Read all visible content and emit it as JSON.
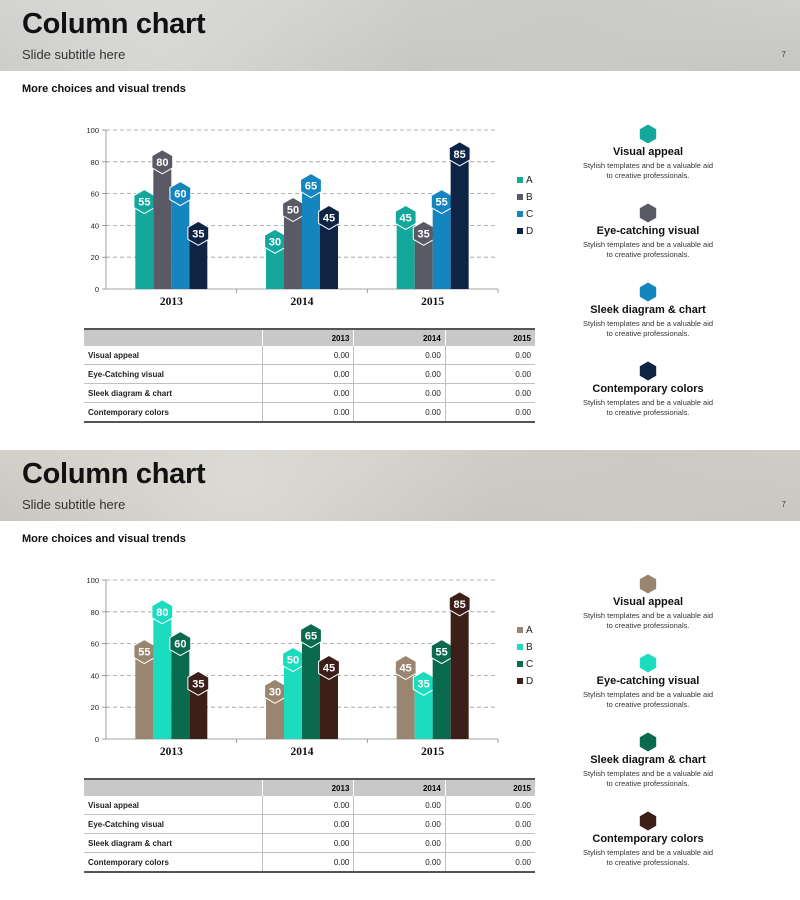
{
  "slides": [
    {
      "title": "Column chart",
      "subtitle": "Slide subtitle here",
      "page": "7",
      "section": "More choices and visual trends",
      "colors": [
        "#14a89c",
        "#5a5a66",
        "#1585c0",
        "#0f2444"
      ],
      "table": {
        "columns": [
          "",
          "2013",
          "2014",
          "2015"
        ],
        "rows": [
          [
            "Visual appeal",
            "0.00",
            "0.00",
            "0.00"
          ],
          [
            "Eye-Catching visual",
            "0.00",
            "0.00",
            "0.00"
          ],
          [
            "Sleek diagram & chart",
            "0.00",
            "0.00",
            "0.00"
          ],
          [
            "Contemporary colors",
            "0.00",
            "0.00",
            "0.00"
          ]
        ]
      },
      "features": [
        {
          "title": "Visual appeal",
          "desc1": "Stylish templates and be a valuable aid",
          "desc2": "to creative professionals.",
          "icon": "hexagon-icon"
        },
        {
          "title": "Eye-catching visual",
          "desc1": "Stylish templates and be a valuable aid",
          "desc2": "to creative professionals.",
          "icon": "hexagon-icon"
        },
        {
          "title": "Sleek diagram & chart",
          "desc1": "Stylish templates and be a valuable aid",
          "desc2": "to creative professionals.",
          "icon": "hexagon-icon"
        },
        {
          "title": "Contemporary colors",
          "desc1": "Stylish templates and be a valuable aid",
          "desc2": "to creative professionals.",
          "icon": "hexagon-icon"
        }
      ]
    },
    {
      "title": "Column chart",
      "subtitle": "Slide subtitle here",
      "page": "7",
      "section": "More choices and visual trends",
      "colors": [
        "#9a8670",
        "#1cdcc0",
        "#0a6a4e",
        "#3d1f19"
      ],
      "table": {
        "columns": [
          "",
          "2013",
          "2014",
          "2015"
        ],
        "rows": [
          [
            "Visual appeal",
            "0.00",
            "0.00",
            "0.00"
          ],
          [
            "Eye-Catching visual",
            "0.00",
            "0.00",
            "0.00"
          ],
          [
            "Sleek diagram & chart",
            "0.00",
            "0.00",
            "0.00"
          ],
          [
            "Contemporary colors",
            "0.00",
            "0.00",
            "0.00"
          ]
        ]
      },
      "features": [
        {
          "title": "Visual appeal",
          "desc1": "Stylish templates and be a valuable aid",
          "desc2": "to creative professionals.",
          "icon": "hexagon-icon"
        },
        {
          "title": "Eye-catching visual",
          "desc1": "Stylish templates and be a valuable aid",
          "desc2": "to creative professionals.",
          "icon": "hexagon-icon"
        },
        {
          "title": "Sleek diagram & chart",
          "desc1": "Stylish templates and be a valuable aid",
          "desc2": "to creative professionals.",
          "icon": "hexagon-icon"
        },
        {
          "title": "Contemporary colors",
          "desc1": "Stylish templates and be a valuable aid",
          "desc2": "to creative professionals.",
          "icon": "hexagon-icon"
        }
      ]
    }
  ],
  "chart_data": [
    {
      "type": "bar",
      "categories": [
        "2013",
        "2014",
        "2015"
      ],
      "series": [
        {
          "name": "A",
          "values": [
            55,
            30,
            45
          ]
        },
        {
          "name": "B",
          "values": [
            80,
            50,
            35
          ]
        },
        {
          "name": "C",
          "values": [
            60,
            65,
            55
          ]
        },
        {
          "name": "D",
          "values": [
            35,
            45,
            85
          ]
        }
      ],
      "yticks": [
        0,
        20,
        40,
        60,
        80,
        100
      ],
      "ylim": [
        0,
        100
      ],
      "grid": true,
      "legend": "right"
    },
    {
      "type": "bar",
      "categories": [
        "2013",
        "2014",
        "2015"
      ],
      "series": [
        {
          "name": "A",
          "values": [
            55,
            30,
            45
          ]
        },
        {
          "name": "B",
          "values": [
            80,
            50,
            35
          ]
        },
        {
          "name": "C",
          "values": [
            60,
            65,
            55
          ]
        },
        {
          "name": "D",
          "values": [
            35,
            45,
            85
          ]
        }
      ],
      "yticks": [
        0,
        20,
        40,
        60,
        80,
        100
      ],
      "ylim": [
        0,
        100
      ],
      "grid": true,
      "legend": "right"
    }
  ]
}
